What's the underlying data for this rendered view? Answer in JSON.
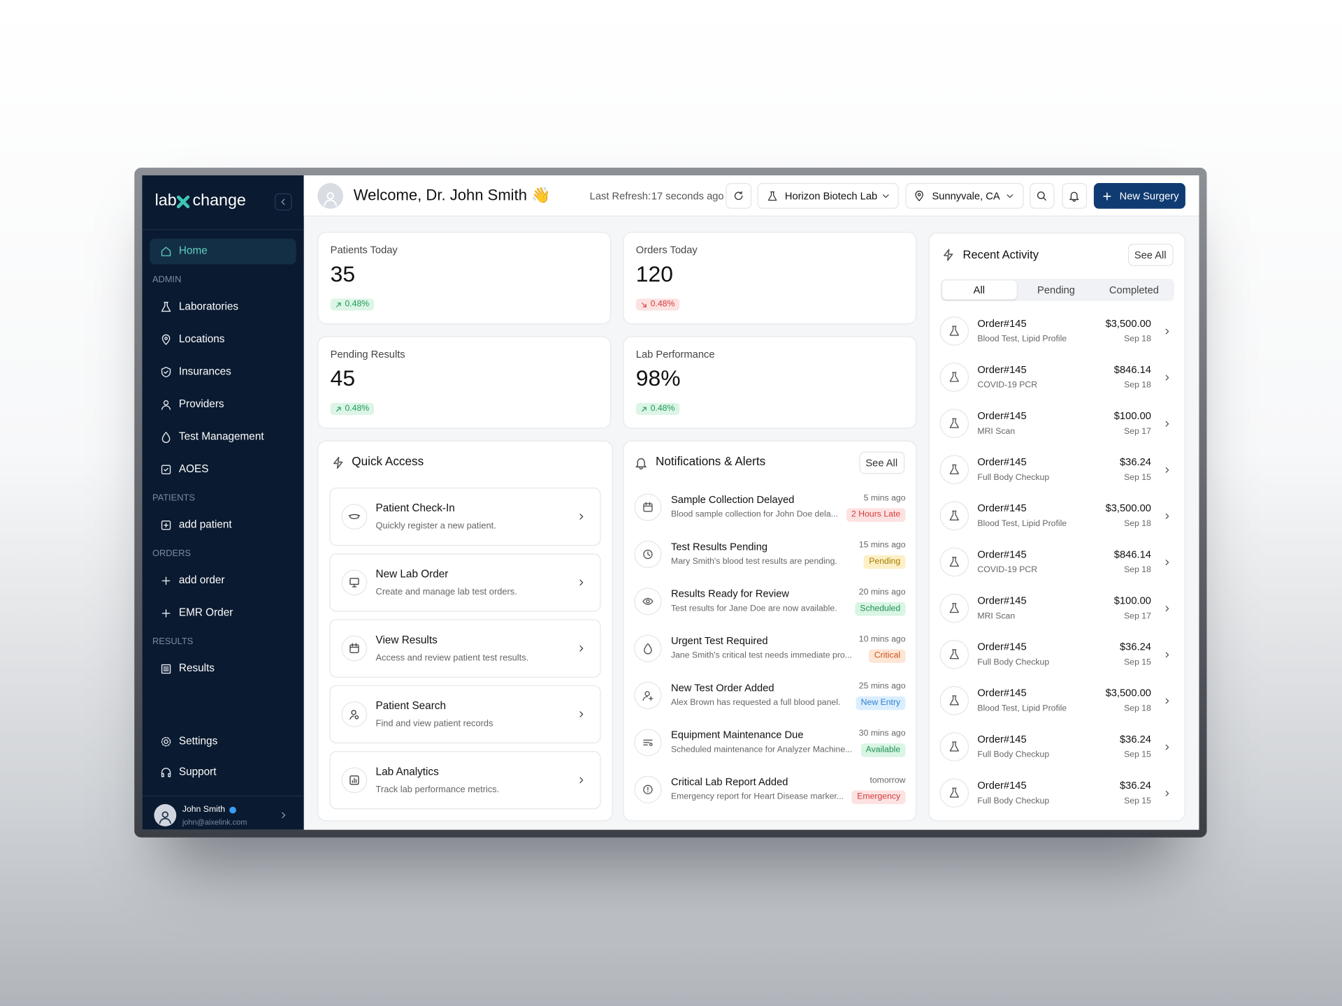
{
  "sidebar": {
    "logo": [
      "lab",
      "change"
    ],
    "home": "Home",
    "sections": [
      {
        "heading": "ADMIN",
        "items": [
          "Laboratories",
          "Locations",
          "Insurances",
          "Providers",
          "Test Management",
          "AOES"
        ]
      },
      {
        "heading": "PATIENTS",
        "items": [
          "add patient"
        ]
      },
      {
        "heading": "ORDERS",
        "items": [
          "add order",
          "EMR Order"
        ]
      },
      {
        "heading": "RESULTS",
        "items": [
          "Results"
        ]
      }
    ],
    "bottom": [
      "Settings",
      "Support"
    ],
    "user": {
      "name": "John Smith",
      "email": "john@aixelink.com"
    }
  },
  "header": {
    "welcome": "Welcome, Dr. John Smith 👋",
    "refresh_label": "Last Refresh:",
    "refresh_value": "17 seconds ago",
    "lab": "Horizon Biotech Lab",
    "location": "Sunnyvale, CA",
    "button": "New Surgery"
  },
  "stats": [
    {
      "label": "Patients Today",
      "value": "35",
      "change": "0.48%",
      "trend": "up"
    },
    {
      "label": "Orders Today",
      "value": "120",
      "change": "0.48%",
      "trend": "down"
    },
    {
      "label": "Pending Results",
      "value": "45",
      "change": "0.48%",
      "trend": "up"
    },
    {
      "label": "Lab Performance",
      "value": "98%",
      "change": "0.48%",
      "trend": "up"
    }
  ],
  "quick_access": {
    "title": "Quick Access",
    "items": [
      {
        "title": "Patient Check-In",
        "desc": "Quickly register a new patient."
      },
      {
        "title": "New Lab Order",
        "desc": "Create and manage lab test orders."
      },
      {
        "title": "View Results",
        "desc": "Access and review patient test results."
      },
      {
        "title": "Patient Search",
        "desc": "Find and view patient records"
      },
      {
        "title": "Lab Analytics",
        "desc": "Track lab performance metrics."
      }
    ]
  },
  "notifications": {
    "title": "Notifications & Alerts",
    "see_all": "See All",
    "items": [
      {
        "title": "Sample Collection Delayed",
        "desc": "Blood sample collection for John Doe dela...",
        "time": "5 mins ago",
        "status": "2 Hours Late",
        "tone": "red"
      },
      {
        "title": "Test Results Pending",
        "desc": "Mary Smith's blood test results are pending.",
        "time": "15 mins ago",
        "status": "Pending",
        "tone": "yellow"
      },
      {
        "title": "Results Ready for Review",
        "desc": "Test results for Jane Doe are now available.",
        "time": "20 mins ago",
        "status": "Scheduled",
        "tone": "green"
      },
      {
        "title": "Urgent Test Required",
        "desc": "Jane Smith's critical test needs immediate pro...",
        "time": "10 mins ago",
        "status": "Critical",
        "tone": "orange"
      },
      {
        "title": "New Test Order Added",
        "desc": "Alex Brown has requested a full blood panel.",
        "time": "25 mins ago",
        "status": "New Entry",
        "tone": "blue"
      },
      {
        "title": "Equipment Maintenance Due",
        "desc": "Scheduled maintenance for Analyzer Machine...",
        "time": "30 mins ago",
        "status": "Available",
        "tone": "green"
      },
      {
        "title": "Critical Lab Report Added",
        "desc": "Emergency report for Heart Disease marker...",
        "time": "tomorrow",
        "status": "Emergency",
        "tone": "red"
      }
    ]
  },
  "activity": {
    "title": "Recent Activity",
    "see_all": "See All",
    "tabs": [
      "All",
      "Pending",
      "Completed"
    ],
    "items": [
      {
        "order": "Order#145",
        "desc": "Blood Test, Lipid Profile",
        "amount": "$3,500.00",
        "date": "Sep 18"
      },
      {
        "order": "Order#145",
        "desc": "COVID-19 PCR",
        "amount": "$846.14",
        "date": "Sep 18"
      },
      {
        "order": "Order#145",
        "desc": "MRI Scan",
        "amount": "$100.00",
        "date": "Sep 17"
      },
      {
        "order": "Order#145",
        "desc": "Full Body Checkup",
        "amount": "$36.24",
        "date": "Sep 15"
      },
      {
        "order": "Order#145",
        "desc": "Blood Test, Lipid Profile",
        "amount": "$3,500.00",
        "date": "Sep 18"
      },
      {
        "order": "Order#145",
        "desc": "COVID-19 PCR",
        "amount": "$846.14",
        "date": "Sep 18"
      },
      {
        "order": "Order#145",
        "desc": "MRI Scan",
        "amount": "$100.00",
        "date": "Sep 17"
      },
      {
        "order": "Order#145",
        "desc": "Full Body Checkup",
        "amount": "$36.24",
        "date": "Sep 15"
      },
      {
        "order": "Order#145",
        "desc": "Blood Test, Lipid Profile",
        "amount": "$3,500.00",
        "date": "Sep 18"
      },
      {
        "order": "Order#145",
        "desc": "Full Body Checkup",
        "amount": "$36.24",
        "date": "Sep 15"
      },
      {
        "order": "Order#145",
        "desc": "Full Body Checkup",
        "amount": "$36.24",
        "date": "Sep 15"
      }
    ]
  }
}
